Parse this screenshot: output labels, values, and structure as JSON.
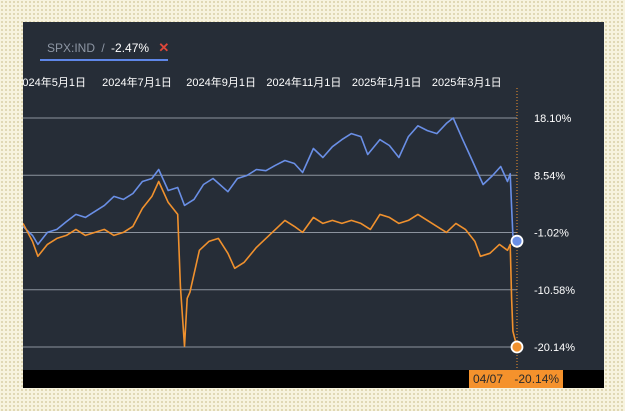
{
  "legend": {
    "ticker": "SPX:IND",
    "separator": "/",
    "change": "-2.47%",
    "close_symbol": "✕"
  },
  "badge": {
    "date": "04/07",
    "value": "-20.14%"
  },
  "colors": {
    "background": "#262d37",
    "grid": "#8c939e",
    "series_blue": "#6a8fe6",
    "series_orange": "#f0912e",
    "badge": "#f5922c",
    "remove": "#e0473a"
  },
  "chart_data": {
    "type": "line",
    "title": "",
    "xlabel": "",
    "ylabel": "",
    "x_tick_labels": [
      "024年5月1日",
      "2024年7月1日",
      "2024年9月1日",
      "2024年11月1日",
      "2025年1月1日",
      "2025年3月1日"
    ],
    "x_tick_dates": [
      "2024-05-01",
      "2024-07-01",
      "2024-09-01",
      "2024-11-01",
      "2025-01-01",
      "2025-03-01"
    ],
    "y_ticks": [
      "18.10%",
      "8.54%",
      "-1.02%",
      "-10.58%",
      "-20.14%"
    ],
    "y_tick_values": [
      18.1,
      8.54,
      -1.02,
      -10.58,
      -20.14
    ],
    "ylim": [
      -20.14,
      18.1
    ],
    "xlim": [
      "2024-04-08",
      "2025-04-07"
    ],
    "grid": true,
    "series": [
      {
        "color": "#6a8fe6",
        "points": [
          [
            "2024-04-08",
            0.0
          ],
          [
            "2024-04-15",
            -1.5
          ],
          [
            "2024-04-19",
            -3.0
          ],
          [
            "2024-04-26",
            -1.0
          ],
          [
            "2024-05-03",
            -0.5
          ],
          [
            "2024-05-10",
            0.8
          ],
          [
            "2024-05-17",
            2.0
          ],
          [
            "2024-05-24",
            1.5
          ],
          [
            "2024-05-31",
            2.5
          ],
          [
            "2024-06-07",
            3.5
          ],
          [
            "2024-06-14",
            5.0
          ],
          [
            "2024-06-21",
            4.5
          ],
          [
            "2024-06-28",
            5.5
          ],
          [
            "2024-07-05",
            7.5
          ],
          [
            "2024-07-12",
            8.0
          ],
          [
            "2024-07-17",
            9.5
          ],
          [
            "2024-07-24",
            6.0
          ],
          [
            "2024-07-31",
            6.5
          ],
          [
            "2024-08-05",
            3.5
          ],
          [
            "2024-08-12",
            4.5
          ],
          [
            "2024-08-19",
            7.0
          ],
          [
            "2024-08-26",
            8.0
          ],
          [
            "2024-09-06",
            5.8
          ],
          [
            "2024-09-13",
            8.0
          ],
          [
            "2024-09-20",
            8.5
          ],
          [
            "2024-09-27",
            9.5
          ],
          [
            "2024-10-04",
            9.3
          ],
          [
            "2024-10-11",
            10.2
          ],
          [
            "2024-10-18",
            11.0
          ],
          [
            "2024-10-25",
            10.5
          ],
          [
            "2024-10-31",
            9.0
          ],
          [
            "2024-11-08",
            13.0
          ],
          [
            "2024-11-15",
            11.5
          ],
          [
            "2024-11-22",
            13.3
          ],
          [
            "2024-11-29",
            14.5
          ],
          [
            "2024-12-06",
            15.5
          ],
          [
            "2024-12-13",
            15.0
          ],
          [
            "2024-12-18",
            12.0
          ],
          [
            "2024-12-27",
            14.5
          ],
          [
            "2025-01-03",
            13.5
          ],
          [
            "2025-01-10",
            11.5
          ],
          [
            "2025-01-17",
            15.0
          ],
          [
            "2025-01-24",
            16.8
          ],
          [
            "2025-01-31",
            16.0
          ],
          [
            "2025-02-07",
            15.5
          ],
          [
            "2025-02-14",
            17.2
          ],
          [
            "2025-02-19",
            18.1
          ],
          [
            "2025-02-26",
            14.5
          ],
          [
            "2025-03-04",
            11.5
          ],
          [
            "2025-03-10",
            8.5
          ],
          [
            "2025-03-13",
            7.0
          ],
          [
            "2025-03-20",
            8.5
          ],
          [
            "2025-03-26",
            10.0
          ],
          [
            "2025-03-31",
            7.5
          ],
          [
            "2025-04-02",
            8.8
          ],
          [
            "2025-04-03",
            3.2
          ],
          [
            "2025-04-04",
            -1.5
          ],
          [
            "2025-04-07",
            -2.47
          ]
        ]
      },
      {
        "color": "#f0912e",
        "points": [
          [
            "2024-04-08",
            0.5
          ],
          [
            "2024-04-15",
            -2.5
          ],
          [
            "2024-04-19",
            -5.0
          ],
          [
            "2024-04-26",
            -3.0
          ],
          [
            "2024-05-03",
            -2.0
          ],
          [
            "2024-05-10",
            -1.5
          ],
          [
            "2024-05-17",
            -0.5
          ],
          [
            "2024-05-24",
            -1.5
          ],
          [
            "2024-05-31",
            -1.0
          ],
          [
            "2024-06-07",
            -0.5
          ],
          [
            "2024-06-14",
            -1.5
          ],
          [
            "2024-06-21",
            -1.0
          ],
          [
            "2024-06-28",
            0.0
          ],
          [
            "2024-07-05",
            3.0
          ],
          [
            "2024-07-12",
            5.0
          ],
          [
            "2024-07-17",
            7.5
          ],
          [
            "2024-07-24",
            4.0
          ],
          [
            "2024-07-31",
            2.0
          ],
          [
            "2024-08-02",
            -10.0
          ],
          [
            "2024-08-05",
            -20.0
          ],
          [
            "2024-08-07",
            -12.0
          ],
          [
            "2024-08-09",
            -11.0
          ],
          [
            "2024-08-16",
            -4.0
          ],
          [
            "2024-08-23",
            -2.5
          ],
          [
            "2024-08-30",
            -2.0
          ],
          [
            "2024-09-06",
            -4.5
          ],
          [
            "2024-09-11",
            -7.0
          ],
          [
            "2024-09-18",
            -6.0
          ],
          [
            "2024-09-27",
            -3.5
          ],
          [
            "2024-10-04",
            -2.0
          ],
          [
            "2024-10-11",
            -0.5
          ],
          [
            "2024-10-18",
            1.0
          ],
          [
            "2024-10-25",
            0.0
          ],
          [
            "2024-10-31",
            -1.0
          ],
          [
            "2024-11-08",
            1.5
          ],
          [
            "2024-11-15",
            0.5
          ],
          [
            "2024-11-22",
            1.0
          ],
          [
            "2024-11-29",
            0.5
          ],
          [
            "2024-12-06",
            1.0
          ],
          [
            "2024-12-13",
            0.5
          ],
          [
            "2024-12-20",
            -0.5
          ],
          [
            "2024-12-27",
            2.0
          ],
          [
            "2025-01-03",
            1.5
          ],
          [
            "2025-01-10",
            0.5
          ],
          [
            "2025-01-17",
            1.0
          ],
          [
            "2025-01-24",
            2.0
          ],
          [
            "2025-01-31",
            1.0
          ],
          [
            "2025-02-07",
            0.0
          ],
          [
            "2025-02-14",
            -1.0
          ],
          [
            "2025-02-21",
            0.5
          ],
          [
            "2025-02-28",
            -0.5
          ],
          [
            "2025-03-07",
            -2.5
          ],
          [
            "2025-03-11",
            -5.0
          ],
          [
            "2025-03-18",
            -4.5
          ],
          [
            "2025-03-25",
            -3.0
          ],
          [
            "2025-03-31",
            -4.0
          ],
          [
            "2025-04-02",
            -3.0
          ],
          [
            "2025-04-03",
            -12.0
          ],
          [
            "2025-04-04",
            -17.5
          ],
          [
            "2025-04-07",
            -20.14
          ]
        ]
      }
    ]
  }
}
